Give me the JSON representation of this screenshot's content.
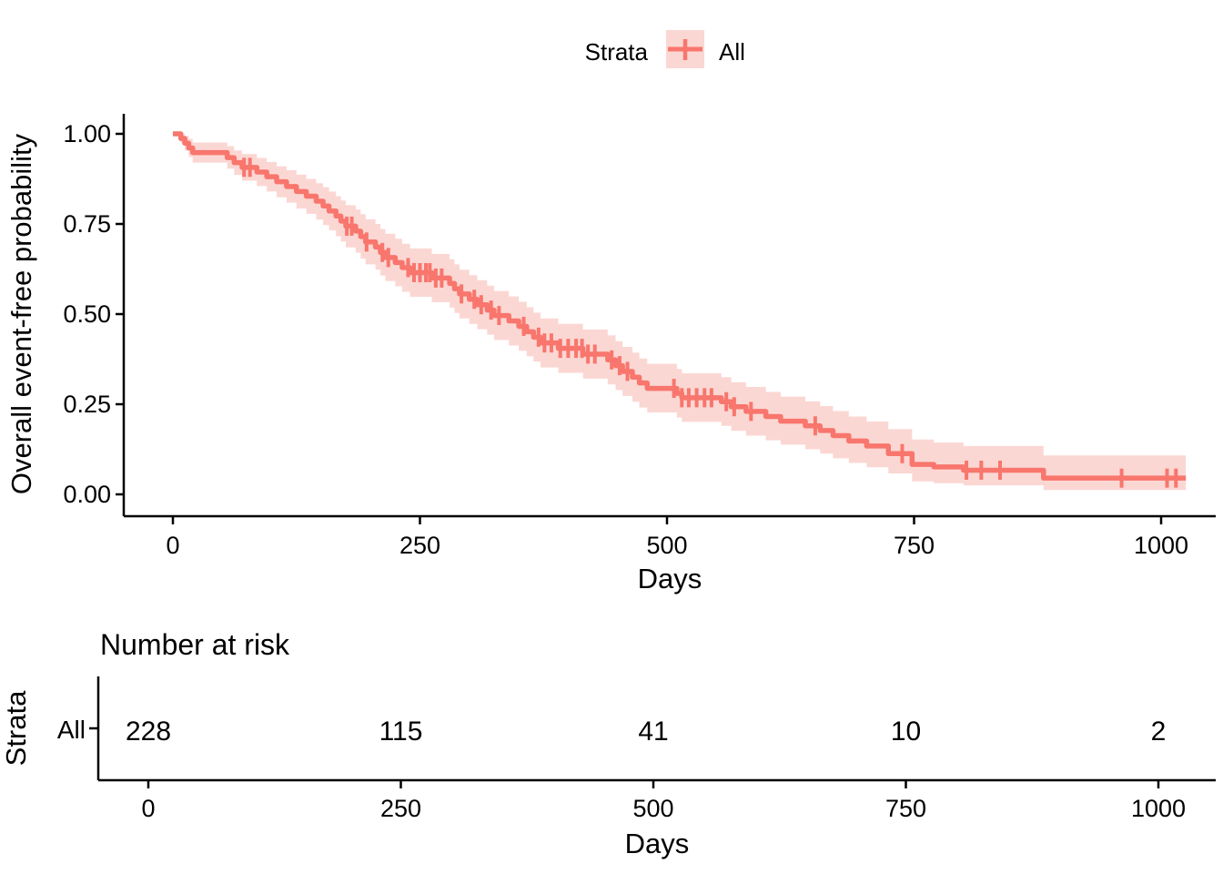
{
  "legend": {
    "title": "Strata",
    "items": [
      {
        "label": "All"
      }
    ]
  },
  "chart_data": {
    "type": "line",
    "subtype": "kaplan-meier-step-with-ci-ribbon",
    "title": "",
    "xlabel": "Days",
    "ylabel": "Overall event-free probability",
    "x_ticks": [
      0,
      250,
      500,
      750,
      1000
    ],
    "y_ticks": [
      "1.00",
      "0.75",
      "0.50",
      "0.25",
      "0.00"
    ],
    "xlim": [
      0,
      1030
    ],
    "ylim": [
      0,
      1
    ],
    "grid": "off",
    "legend_position": "top",
    "colors": {
      "line": "#F8766D",
      "ribbon": "#FBD7D3",
      "axis": "#000000"
    },
    "series": [
      {
        "name": "All",
        "end_time": 1025,
        "steps": [
          [
            0,
            1.0,
            1.0,
            1.0
          ],
          [
            8,
            0.987,
            0.974,
            1.0
          ],
          [
            12,
            0.974,
            0.953,
            0.995
          ],
          [
            16,
            0.961,
            0.936,
            0.986
          ],
          [
            20,
            0.948,
            0.92,
            0.976
          ],
          [
            55,
            0.934,
            0.903,
            0.966
          ],
          [
            62,
            0.92,
            0.886,
            0.954
          ],
          [
            70,
            0.907,
            0.87,
            0.944
          ],
          [
            85,
            0.894,
            0.855,
            0.933
          ],
          [
            95,
            0.881,
            0.84,
            0.922
          ],
          [
            105,
            0.867,
            0.824,
            0.91
          ],
          [
            115,
            0.854,
            0.809,
            0.899
          ],
          [
            125,
            0.84,
            0.793,
            0.887
          ],
          [
            135,
            0.827,
            0.778,
            0.875
          ],
          [
            145,
            0.813,
            0.762,
            0.863
          ],
          [
            152,
            0.8,
            0.747,
            0.852
          ],
          [
            158,
            0.786,
            0.732,
            0.84
          ],
          [
            165,
            0.772,
            0.716,
            0.827
          ],
          [
            170,
            0.758,
            0.701,
            0.815
          ],
          [
            175,
            0.744,
            0.685,
            0.802
          ],
          [
            185,
            0.73,
            0.67,
            0.79
          ],
          [
            190,
            0.715,
            0.654,
            0.777
          ],
          [
            195,
            0.7,
            0.638,
            0.763
          ],
          [
            205,
            0.686,
            0.623,
            0.75
          ],
          [
            210,
            0.671,
            0.607,
            0.736
          ],
          [
            215,
            0.657,
            0.592,
            0.723
          ],
          [
            225,
            0.643,
            0.577,
            0.709
          ],
          [
            232,
            0.629,
            0.562,
            0.695
          ],
          [
            240,
            0.615,
            0.548,
            0.682
          ],
          [
            262,
            0.6,
            0.533,
            0.667
          ],
          [
            280,
            0.585,
            0.518,
            0.652
          ],
          [
            285,
            0.57,
            0.503,
            0.638
          ],
          [
            290,
            0.556,
            0.488,
            0.623
          ],
          [
            300,
            0.541,
            0.473,
            0.608
          ],
          [
            308,
            0.526,
            0.458,
            0.594
          ],
          [
            318,
            0.511,
            0.443,
            0.579
          ],
          [
            325,
            0.496,
            0.428,
            0.564
          ],
          [
            340,
            0.481,
            0.413,
            0.549
          ],
          [
            350,
            0.466,
            0.398,
            0.534
          ],
          [
            358,
            0.451,
            0.383,
            0.519
          ],
          [
            365,
            0.436,
            0.368,
            0.504
          ],
          [
            372,
            0.42,
            0.352,
            0.488
          ],
          [
            390,
            0.405,
            0.337,
            0.473
          ],
          [
            415,
            0.389,
            0.321,
            0.457
          ],
          [
            440,
            0.373,
            0.305,
            0.441
          ],
          [
            448,
            0.357,
            0.289,
            0.425
          ],
          [
            455,
            0.341,
            0.273,
            0.409
          ],
          [
            465,
            0.325,
            0.257,
            0.393
          ],
          [
            472,
            0.309,
            0.241,
            0.377
          ],
          [
            480,
            0.294,
            0.227,
            0.362
          ],
          [
            510,
            0.28,
            0.213,
            0.348
          ],
          [
            515,
            0.268,
            0.201,
            0.336
          ],
          [
            555,
            0.257,
            0.19,
            0.325
          ],
          [
            565,
            0.243,
            0.176,
            0.311
          ],
          [
            580,
            0.23,
            0.163,
            0.298
          ],
          [
            600,
            0.216,
            0.15,
            0.284
          ],
          [
            615,
            0.203,
            0.138,
            0.271
          ],
          [
            640,
            0.19,
            0.125,
            0.258
          ],
          [
            655,
            0.177,
            0.113,
            0.245
          ],
          [
            668,
            0.163,
            0.1,
            0.231
          ],
          [
            684,
            0.148,
            0.087,
            0.216
          ],
          [
            702,
            0.134,
            0.075,
            0.202
          ],
          [
            724,
            0.113,
            0.058,
            0.181
          ],
          [
            748,
            0.083,
            0.036,
            0.152
          ],
          [
            770,
            0.076,
            0.031,
            0.144
          ],
          [
            800,
            0.067,
            0.025,
            0.134
          ],
          [
            881,
            0.045,
            0.012,
            0.108
          ]
        ],
        "censor_times": [
          72,
          78,
          176,
          181,
          196,
          212,
          218,
          238,
          244,
          250,
          256,
          260,
          266,
          272,
          292,
          305,
          312,
          322,
          330,
          355,
          370,
          376,
          383,
          392,
          400,
          408,
          414,
          420,
          427,
          444,
          452,
          460,
          507,
          515,
          522,
          530,
          538,
          545,
          560,
          568,
          585,
          650,
          738,
          803,
          818,
          837,
          960,
          1006,
          1015
        ]
      }
    ]
  },
  "risk_table": {
    "title": "Number at risk",
    "axis_label": "Strata",
    "xlabel": "Days",
    "x_ticks": [
      0,
      250,
      500,
      750,
      1000
    ],
    "rows": [
      {
        "label": "All",
        "color": "#F8766D",
        "counts": [
          228,
          115,
          41,
          10,
          2
        ]
      }
    ]
  }
}
